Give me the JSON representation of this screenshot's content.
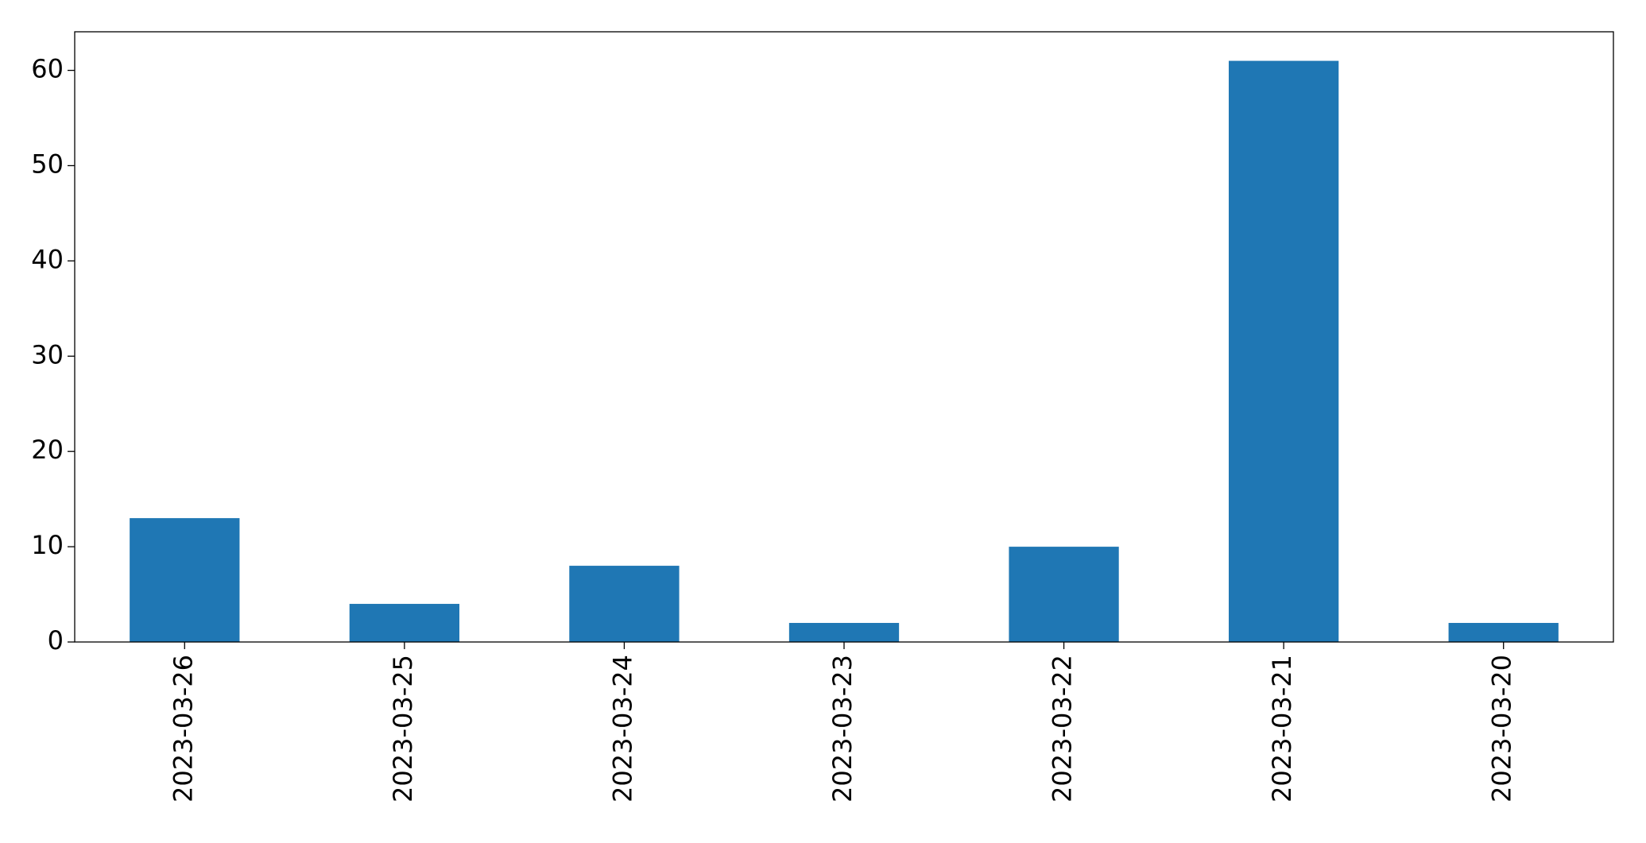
{
  "chart_data": {
    "type": "bar",
    "categories": [
      "2023-03-26",
      "2023-03-25",
      "2023-03-24",
      "2023-03-23",
      "2023-03-22",
      "2023-03-21",
      "2023-03-20"
    ],
    "values": [
      13,
      4,
      8,
      2,
      10,
      61,
      2
    ],
    "color": "#1f77b4",
    "ylim": [
      0,
      64.05
    ],
    "yticks": [
      0,
      10,
      20,
      30,
      40,
      50,
      60
    ],
    "grid": false
  }
}
